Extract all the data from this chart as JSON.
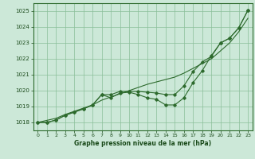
{
  "x": [
    0,
    1,
    2,
    3,
    4,
    5,
    6,
    7,
    8,
    9,
    10,
    11,
    12,
    13,
    14,
    15,
    16,
    17,
    18,
    19,
    20,
    21,
    22,
    23
  ],
  "s_curved": [
    1018.0,
    1018.0,
    1018.15,
    1018.45,
    1018.65,
    1018.85,
    1019.1,
    1019.75,
    1019.55,
    1019.85,
    1019.9,
    1019.75,
    1019.55,
    1019.45,
    1019.1,
    1019.1,
    1019.55,
    1020.5,
    1021.25,
    1022.2,
    1023.0,
    1023.3,
    1023.95,
    1025.05
  ],
  "s_mid": [
    1018.0,
    1018.0,
    1018.15,
    1018.45,
    1018.65,
    1018.85,
    1019.1,
    1019.75,
    1019.75,
    1019.95,
    1019.95,
    1019.95,
    1019.9,
    1019.85,
    1019.75,
    1019.75,
    1020.3,
    1021.2,
    1021.8,
    1022.15,
    1023.0,
    1023.3,
    1023.95,
    1025.05
  ],
  "s_straight": [
    1018.0,
    1018.13,
    1018.26,
    1018.5,
    1018.7,
    1018.9,
    1019.1,
    1019.4,
    1019.6,
    1019.8,
    1020.0,
    1020.2,
    1020.4,
    1020.55,
    1020.7,
    1020.85,
    1021.1,
    1021.4,
    1021.7,
    1022.0,
    1022.5,
    1023.0,
    1023.7,
    1024.55
  ],
  "line_color": "#2d6a2d",
  "bg_color": "#cce8d8",
  "grid_color": "#8abf9a",
  "text_color": "#1a4a1a",
  "ylim": [
    1017.5,
    1025.5
  ],
  "xlim": [
    -0.5,
    23.5
  ],
  "xlabel": "Graphe pression niveau de la mer (hPa)",
  "yticks": [
    1018,
    1019,
    1020,
    1021,
    1022,
    1023,
    1024,
    1025
  ],
  "xticks": [
    0,
    1,
    2,
    3,
    4,
    5,
    6,
    7,
    8,
    9,
    10,
    11,
    12,
    13,
    14,
    15,
    16,
    17,
    18,
    19,
    20,
    21,
    22,
    23
  ]
}
